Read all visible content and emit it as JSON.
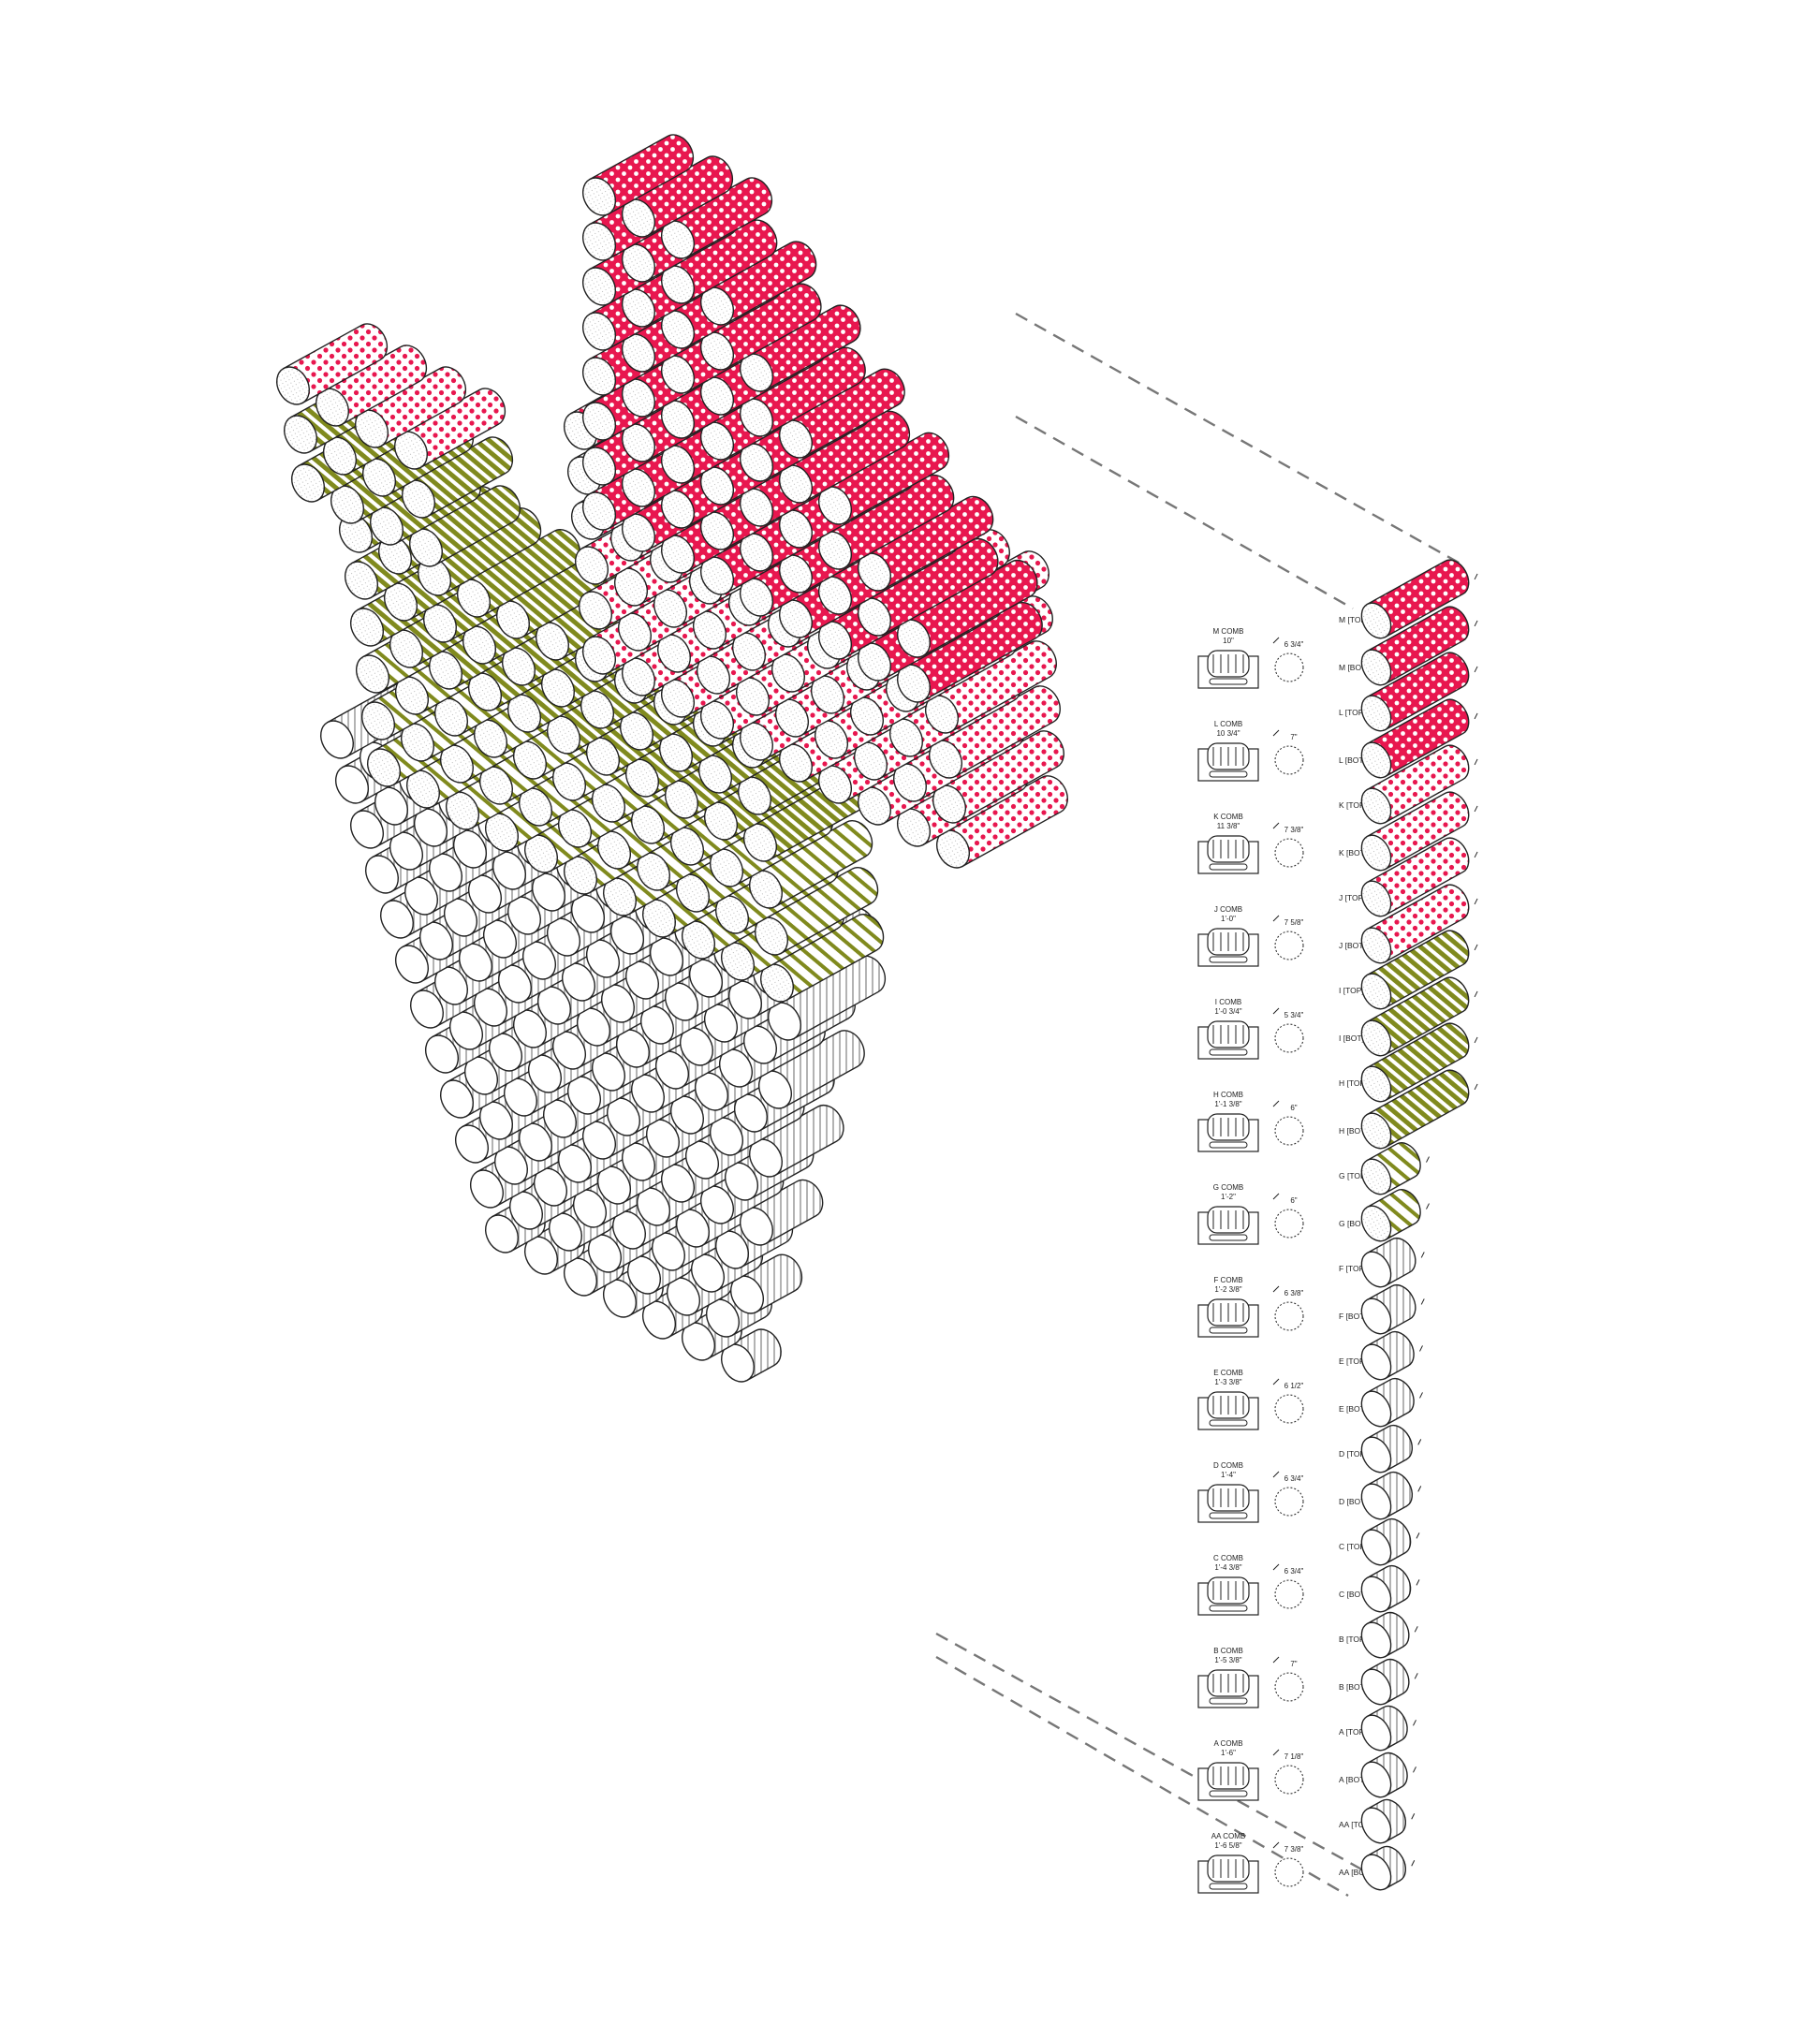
{
  "colors": {
    "red": "#e8174f",
    "pink_bg": "#ffffff",
    "pink_dot": "#e8174f",
    "olive": "#808a1e",
    "gray": "#a9a9a9",
    "outline": "#222222",
    "leader": "#777777"
  },
  "layers": [
    {
      "comb": "AA COMB",
      "length": "1'-6 5/8\"",
      "dia": "7 3/8\"",
      "top": "AA [TOP]",
      "bot": "AA [BOT]",
      "fill": "gray-v"
    },
    {
      "comb": "A COMB",
      "length": "1'-6\"",
      "dia": "7 1/8\"",
      "top": "A [TOP]",
      "bot": "A [BOT]",
      "fill": "gray-v"
    },
    {
      "comb": "B COMB",
      "length": "1'-5 3/8\"",
      "dia": "7\"",
      "top": "B [TOP]",
      "bot": "B [BOT]",
      "fill": "gray-v"
    },
    {
      "comb": "C COMB",
      "length": "1'-4 3/8\"",
      "dia": "6 3/4\"",
      "top": "C [TOP]",
      "bot": "C [BOT]",
      "fill": "gray-v"
    },
    {
      "comb": "D COMB",
      "length": "1'-4\"",
      "dia": "6 3/4\"",
      "top": "D [TOP]",
      "bot": "D [BOT]",
      "fill": "gray-v"
    },
    {
      "comb": "E COMB",
      "length": "1'-3 3/8\"",
      "dia": "6 1/2\"",
      "top": "E [TOP]",
      "bot": "E [BOT]",
      "fill": "gray-v"
    },
    {
      "comb": "F COMB",
      "length": "1'-2 3/8\"",
      "dia": "6 3/8\"",
      "top": "F [TOP]",
      "bot": "F [BOT]",
      "fill": "gray-v"
    },
    {
      "comb": "G COMB",
      "length": "1'-2\"",
      "dia": "6\"",
      "top": "G [TOP]",
      "bot": "G [BOT]",
      "fill": "olive-light"
    },
    {
      "comb": "H COMB",
      "length": "1'-1 3/8\"",
      "dia": "6\"",
      "top": "H [TOP]",
      "bot": "H [BOT]",
      "fill": "olive"
    },
    {
      "comb": "I COMB",
      "length": "1'-0 3/4\"",
      "dia": "5 3/4\"",
      "top": "I [TOP]",
      "bot": "I [BOT]",
      "fill": "olive"
    },
    {
      "comb": "J COMB",
      "length": "1'-0\"",
      "dia": "7 5/8\"",
      "top": "J [TOP]",
      "bot": "J [BOT]",
      "fill": "pink"
    },
    {
      "comb": "K COMB",
      "length": "11 3/8\"",
      "dia": "7 3/8\"",
      "top": "K [TOP]",
      "bot": "K [BOT]",
      "fill": "pink"
    },
    {
      "comb": "L COMB",
      "length": "10 3/4\"",
      "dia": "7\"",
      "top": "L [TOP]",
      "bot": "L [BOT]",
      "fill": "red"
    },
    {
      "comb": "M COMB",
      "length": "10\"",
      "dia": "6 3/4\"",
      "top": "M [TOP]",
      "bot": "M [BOT]",
      "fill": "red"
    }
  ]
}
